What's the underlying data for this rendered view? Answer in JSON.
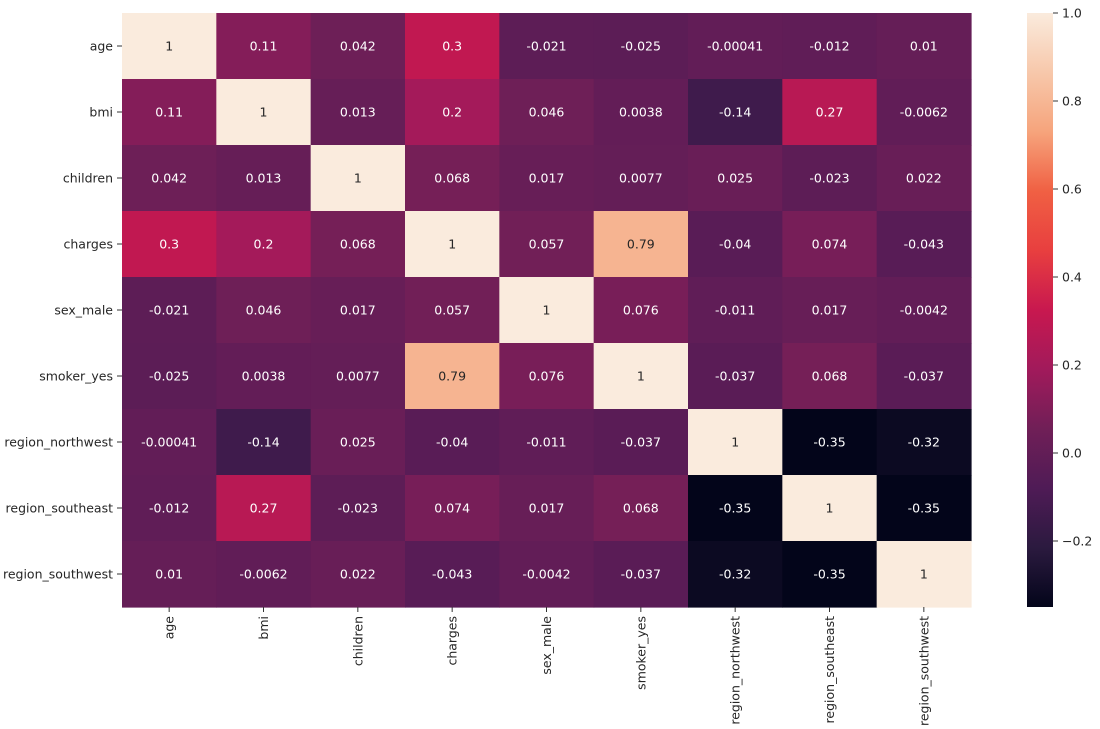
{
  "chart_data": {
    "type": "heatmap",
    "title": "",
    "xlabel": "",
    "ylabel": "",
    "row_labels": [
      "age",
      "bmi",
      "children",
      "charges",
      "sex_male",
      "smoker_yes",
      "region_northwest",
      "region_southeast",
      "region_southwest"
    ],
    "col_labels": [
      "age",
      "bmi",
      "children",
      "charges",
      "sex_male",
      "smoker_yes",
      "region_northwest",
      "region_southeast",
      "region_southwest"
    ],
    "values": [
      [
        1,
        0.11,
        0.042,
        0.3,
        -0.021,
        -0.025,
        -0.00041,
        -0.012,
        0.01
      ],
      [
        0.11,
        1,
        0.013,
        0.2,
        0.046,
        0.0038,
        -0.14,
        0.27,
        -0.0062
      ],
      [
        0.042,
        0.013,
        1,
        0.068,
        0.017,
        0.0077,
        0.025,
        -0.023,
        0.022
      ],
      [
        0.3,
        0.2,
        0.068,
        1,
        0.057,
        0.79,
        -0.04,
        0.074,
        -0.043
      ],
      [
        -0.021,
        0.046,
        0.017,
        0.057,
        1,
        0.076,
        -0.011,
        0.017,
        -0.0042
      ],
      [
        -0.025,
        0.0038,
        0.0077,
        0.79,
        0.076,
        1,
        -0.037,
        0.068,
        -0.037
      ],
      [
        -0.00041,
        -0.14,
        0.025,
        -0.04,
        -0.011,
        -0.037,
        1,
        -0.35,
        -0.32
      ],
      [
        -0.012,
        0.27,
        -0.023,
        0.074,
        0.017,
        0.068,
        -0.35,
        1,
        -0.35
      ],
      [
        0.01,
        -0.0062,
        0.022,
        -0.043,
        -0.0042,
        -0.037,
        -0.32,
        -0.35,
        1
      ]
    ],
    "annotations": [
      [
        "1",
        "0.11",
        "0.042",
        "0.3",
        "-0.021",
        "-0.025",
        "-0.00041",
        "-0.012",
        "0.01"
      ],
      [
        "0.11",
        "1",
        "0.013",
        "0.2",
        "0.046",
        "0.0038",
        "-0.14",
        "0.27",
        "-0.0062"
      ],
      [
        "0.042",
        "0.013",
        "1",
        "0.068",
        "0.017",
        "0.0077",
        "0.025",
        "-0.023",
        "0.022"
      ],
      [
        "0.3",
        "0.2",
        "0.068",
        "1",
        "0.057",
        "0.79",
        "-0.04",
        "0.074",
        "-0.043"
      ],
      [
        "-0.021",
        "0.046",
        "0.017",
        "0.057",
        "1",
        "0.076",
        "-0.011",
        "0.017",
        "-0.0042"
      ],
      [
        "-0.025",
        "0.0038",
        "0.0077",
        "0.79",
        "0.076",
        "1",
        "-0.037",
        "0.068",
        "-0.037"
      ],
      [
        "-0.00041",
        "-0.14",
        "0.025",
        "-0.04",
        "-0.011",
        "-0.037",
        "1",
        "-0.35",
        "-0.32"
      ],
      [
        "-0.012",
        "0.27",
        "-0.023",
        "0.074",
        "0.017",
        "0.068",
        "-0.35",
        "1",
        "-0.35"
      ],
      [
        "0.01",
        "-0.0062",
        "0.022",
        "-0.043",
        "-0.0042",
        "-0.037",
        "-0.32",
        "-0.35",
        "1"
      ]
    ],
    "colormap": "rocket",
    "vmin": -0.35,
    "vmax": 1.0,
    "colorbar": {
      "ticks": [
        -0.2,
        0.0,
        0.2,
        0.4,
        0.6,
        0.8,
        1.0
      ],
      "tick_labels": [
        "−0.2",
        "0.0",
        "0.2",
        "0.4",
        "0.6",
        "0.8",
        "1.0"
      ]
    },
    "legend_placement": "right",
    "grid": false
  }
}
